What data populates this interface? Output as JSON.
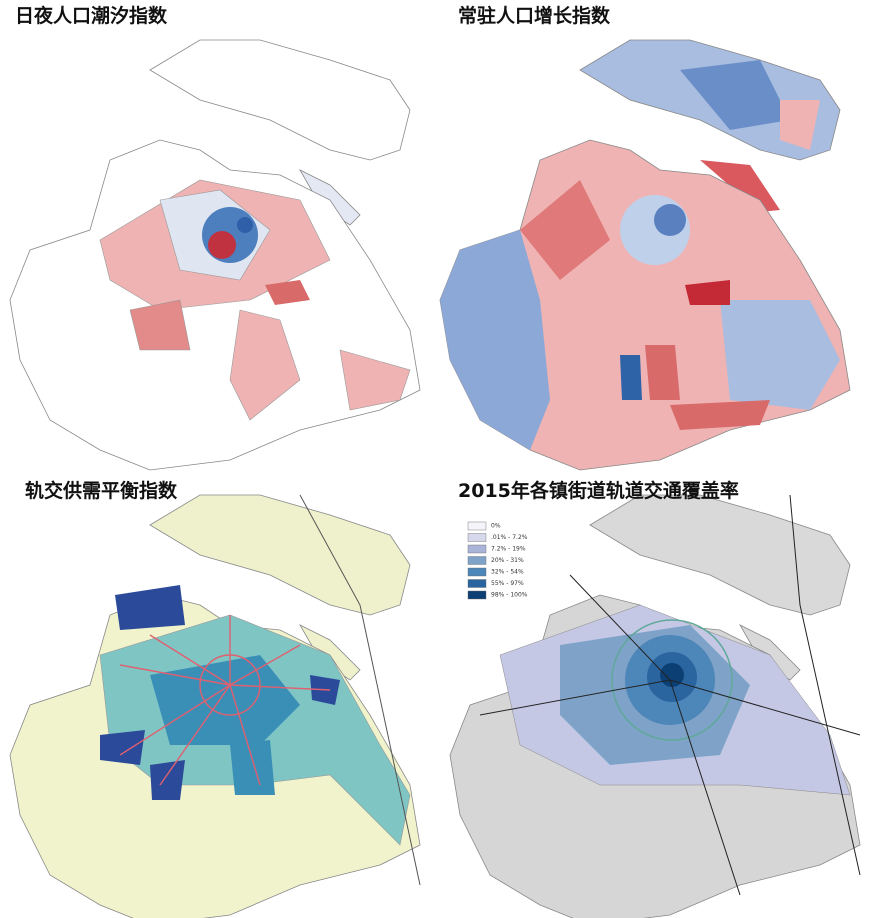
{
  "panels": [
    {
      "title": "日夜人口潮汐指数"
    },
    {
      "title": "常驻人口增长指数"
    },
    {
      "title": "轨交供需平衡指数"
    },
    {
      "title": "2015年各镇街道轨道交通覆盖率",
      "legend": [
        {
          "label": "0%",
          "color": "#f4f4fa"
        },
        {
          "label": ".01% - 7.2%",
          "color": "#d6d8ec"
        },
        {
          "label": "7.2% - 19%",
          "color": "#a9b4d8"
        },
        {
          "label": "20% - 31%",
          "color": "#7fa3c8"
        },
        {
          "label": "32% - 54%",
          "color": "#4d86b8"
        },
        {
          "label": "55% - 97%",
          "color": "#2a65a0"
        },
        {
          "label": "98% - 100%",
          "color": "#0c3f73"
        }
      ]
    }
  ]
}
